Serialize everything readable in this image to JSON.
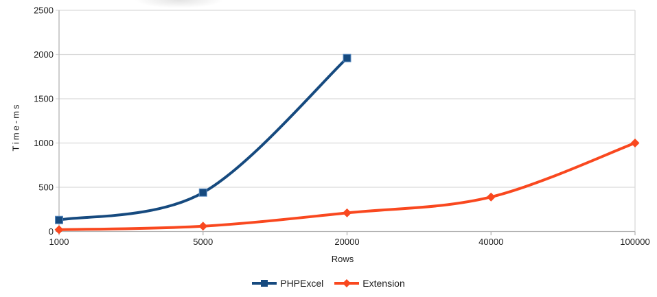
{
  "chart_data": {
    "type": "line",
    "categories": [
      "1000",
      "5000",
      "20000",
      "40000",
      "100000"
    ],
    "series": [
      {
        "name": "PHPExcel",
        "color": "#164A7F",
        "marker": "square",
        "values": [
          130,
          440,
          1960,
          null,
          null
        ]
      },
      {
        "name": "Extension",
        "color": "#F9481F",
        "marker": "diamond",
        "values": [
          20,
          60,
          210,
          390,
          1000
        ]
      }
    ],
    "xlabel": "Rows",
    "ylabel": "Time-ms",
    "yticks": [
      0,
      500,
      1000,
      1500,
      2000,
      2500
    ],
    "ylim": [
      0,
      2500
    ],
    "grid": "horizontal",
    "legend_position": "bottom-center",
    "line_style": "smooth",
    "colors": {
      "gridline": "#D9D9D9",
      "axis": "#B4B4B4",
      "tick_label": "#1A1A1A",
      "background": "#FFFFFF"
    }
  }
}
